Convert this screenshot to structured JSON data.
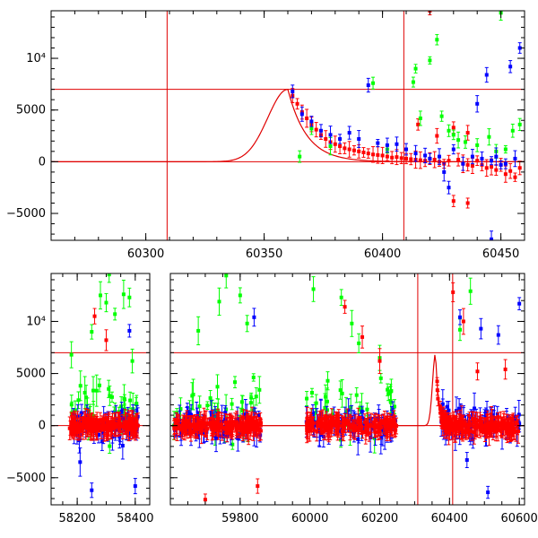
{
  "colors": {
    "red": "#ff0000",
    "green": "#00ff00",
    "blue": "#0000ff",
    "model": "#e00000"
  },
  "chart_data": [
    {
      "type": "scatter",
      "title": "",
      "xlabel": "",
      "ylabel": "",
      "xlim": [
        60260,
        60460
      ],
      "ylim": [
        -7600,
        14600
      ],
      "x_ticks": [
        60300,
        60350,
        60400,
        60450
      ],
      "y_ticks": [
        {
          "value": -5000,
          "label": "−5000"
        },
        {
          "value": 0,
          "label": "0"
        },
        {
          "value": 5000,
          "label": "5000"
        },
        {
          "value": 10000,
          "label": "10⁴"
        }
      ],
      "grid": false,
      "legend": "none",
      "vlines": [
        60309,
        60409
      ],
      "hlines": [
        0,
        7000
      ],
      "model_curve": {
        "baseline": 0,
        "peak": 7000,
        "peak_x": 60360,
        "rise_width": 12,
        "decay_time": 8
      },
      "series": [
        {
          "color": "red",
          "points": [
            [
              60362,
              6400
            ],
            [
              60364,
              5600
            ],
            [
              60366,
              4800
            ],
            [
              60368,
              4200
            ],
            [
              60370,
              3600
            ],
            [
              60372,
              3100
            ],
            [
              60374,
              2600
            ],
            [
              60376,
              2200
            ],
            [
              60378,
              1900
            ],
            [
              60380,
              1700
            ],
            [
              60382,
              1500
            ],
            [
              60384,
              1300
            ],
            [
              60386,
              1200
            ],
            [
              60388,
              1100
            ],
            [
              60390,
              1000
            ],
            [
              60392,
              900
            ],
            [
              60394,
              800
            ],
            [
              60396,
              700
            ],
            [
              60398,
              650
            ],
            [
              60400,
              600
            ],
            [
              60402,
              500
            ],
            [
              60404,
              400
            ],
            [
              60406,
              450
            ],
            [
              60408,
              350
            ],
            [
              60410,
              300
            ],
            [
              60412,
              250
            ],
            [
              60414,
              200
            ],
            [
              60416,
              150
            ],
            [
              60418,
              100
            ],
            [
              60420,
              300
            ],
            [
              60422,
              200
            ],
            [
              60424,
              0
            ],
            [
              60426,
              -200
            ],
            [
              60428,
              100
            ],
            [
              60430,
              -3800
            ],
            [
              60432,
              200
            ],
            [
              60434,
              -200
            ],
            [
              60436,
              -300
            ],
            [
              60438,
              -400
            ],
            [
              60440,
              100
            ],
            [
              60442,
              -300
            ],
            [
              60444,
              -600
            ],
            [
              60446,
              -500
            ],
            [
              60448,
              -800
            ],
            [
              60450,
              -300
            ],
            [
              60452,
              -1200
            ],
            [
              60454,
              -900
            ],
            [
              60456,
              -1500
            ],
            [
              60458,
              -600
            ],
            [
              60420,
              14600
            ],
            [
              60423,
              2500
            ],
            [
              60430,
              3300
            ],
            [
              60436,
              2800
            ],
            [
              60436,
              -4000
            ],
            [
              60415,
              3600
            ]
          ]
        },
        {
          "color": "green",
          "points": [
            [
              60365,
              500
            ],
            [
              60370,
              3200
            ],
            [
              60378,
              1500
            ],
            [
              60396,
              7600
            ],
            [
              60402,
              1200
            ],
            [
              60413,
              7700
            ],
            [
              60414,
              9000
            ],
            [
              60416,
              4200
            ],
            [
              60420,
              9800
            ],
            [
              60423,
              11800
            ],
            [
              60425,
              4400
            ],
            [
              60428,
              3000
            ],
            [
              60430,
              2600
            ],
            [
              60432,
              2100
            ],
            [
              60435,
              1900
            ],
            [
              60440,
              1600
            ],
            [
              60445,
              2400
            ],
            [
              60448,
              1000
            ],
            [
              60450,
              14400
            ],
            [
              60452,
              1200
            ],
            [
              60455,
              3000
            ],
            [
              60458,
              3600
            ]
          ]
        },
        {
          "color": "blue",
          "points": [
            [
              60362,
              6800
            ],
            [
              60366,
              4600
            ],
            [
              60370,
              3900
            ],
            [
              60374,
              3000
            ],
            [
              60378,
              2600
            ],
            [
              60382,
              2200
            ],
            [
              60386,
              2800
            ],
            [
              60390,
              2200
            ],
            [
              60394,
              7400
            ],
            [
              60398,
              1800
            ],
            [
              60402,
              1600
            ],
            [
              60406,
              1700
            ],
            [
              60410,
              1200
            ],
            [
              60414,
              800
            ],
            [
              60418,
              600
            ],
            [
              60420,
              300
            ],
            [
              60424,
              500
            ],
            [
              60426,
              -1000
            ],
            [
              60428,
              -2500
            ],
            [
              60430,
              1200
            ],
            [
              60434,
              -200
            ],
            [
              60438,
              500
            ],
            [
              60440,
              5600
            ],
            [
              60442,
              300
            ],
            [
              60444,
              8400
            ],
            [
              60446,
              100
            ],
            [
              60448,
              500
            ],
            [
              60450,
              -300
            ],
            [
              60452,
              -200
            ],
            [
              60454,
              9200
            ],
            [
              60456,
              300
            ],
            [
              60458,
              11000
            ],
            [
              60446,
              -7500
            ]
          ]
        }
      ]
    },
    {
      "type": "scatter",
      "title": "",
      "xlabel": "",
      "ylabel": "",
      "panels": [
        {
          "xlim": [
            58110,
            58450
          ],
          "x_ticks": [
            58200,
            58400
          ]
        },
        {
          "xlim": [
            59600,
            60615
          ],
          "x_ticks": [
            59800,
            60000,
            60200,
            60400,
            60600
          ]
        }
      ],
      "ylim": [
        -7600,
        14600
      ],
      "y_ticks": [
        {
          "value": -5000,
          "label": "−5000"
        },
        {
          "value": 0,
          "label": "0"
        },
        {
          "value": 5000,
          "label": "5000"
        },
        {
          "value": 10000,
          "label": "10⁴"
        }
      ],
      "grid": false,
      "legend": "none",
      "vlines": [
        60309,
        60409
      ],
      "hlines": [
        0,
        7000
      ],
      "model_curve": {
        "baseline": 0,
        "peak": 7000,
        "peak_x": 60360,
        "rise_width": 12,
        "decay_time": 8
      },
      "seasons": [
        {
          "start": 58170,
          "end": 58410,
          "color": "red",
          "scatter": 700
        },
        {
          "start": 58170,
          "end": 58410,
          "color": "blue",
          "scatter": 1500
        },
        {
          "start": 58170,
          "end": 58410,
          "color": "green",
          "scatter": 2500
        },
        {
          "start": 59610,
          "end": 59860,
          "color": "red",
          "scatter": 700
        },
        {
          "start": 59610,
          "end": 59860,
          "color": "blue",
          "scatter": 1500
        },
        {
          "start": 59610,
          "end": 59860,
          "color": "green",
          "scatter": 2500
        },
        {
          "start": 59990,
          "end": 60250,
          "color": "red",
          "scatter": 700
        },
        {
          "start": 59990,
          "end": 60250,
          "color": "blue",
          "scatter": 1500
        },
        {
          "start": 59990,
          "end": 60250,
          "color": "green",
          "scatter": 2500
        },
        {
          "start": 60375,
          "end": 60600,
          "color": "red",
          "scatter": 700
        },
        {
          "start": 60375,
          "end": 60600,
          "color": "blue",
          "scatter": 1500
        }
      ],
      "outliers": [
        {
          "color": "green",
          "points": [
            [
              58180,
              6800
            ],
            [
              58250,
              9000
            ],
            [
              58280,
              12500
            ],
            [
              58300,
              11800
            ],
            [
              58310,
              14500
            ],
            [
              58330,
              10700
            ],
            [
              58360,
              12600
            ],
            [
              58380,
              12300
            ],
            [
              58390,
              6200
            ],
            [
              59680,
              9100
            ],
            [
              59740,
              11900
            ],
            [
              59760,
              14400
            ],
            [
              59800,
              12500
            ],
            [
              59820,
              9800
            ],
            [
              60010,
              13100
            ],
            [
              60090,
              12300
            ],
            [
              60120,
              9800
            ],
            [
              60140,
              7900
            ],
            [
              60200,
              6500
            ],
            [
              60430,
              9200
            ],
            [
              60460,
              12900
            ]
          ]
        },
        {
          "color": "red",
          "points": [
            [
              58260,
              10500
            ],
            [
              58300,
              8200
            ],
            [
              59700,
              -7100
            ],
            [
              59850,
              -5800
            ],
            [
              60100,
              11400
            ],
            [
              60150,
              8500
            ],
            [
              60200,
              6200
            ],
            [
              60410,
              12800
            ],
            [
              60440,
              10000
            ],
            [
              60480,
              5200
            ],
            [
              60560,
              5400
            ]
          ]
        },
        {
          "color": "blue",
          "points": [
            [
              58210,
              -3500
            ],
            [
              58250,
              -6200
            ],
            [
              58380,
              9100
            ],
            [
              58400,
              -5800
            ],
            [
              59840,
              10400
            ],
            [
              60430,
              10400
            ],
            [
              60450,
              -3300
            ],
            [
              60490,
              9300
            ],
            [
              60510,
              -6400
            ],
            [
              60540,
              8700
            ],
            [
              60600,
              11700
            ]
          ]
        }
      ]
    }
  ]
}
